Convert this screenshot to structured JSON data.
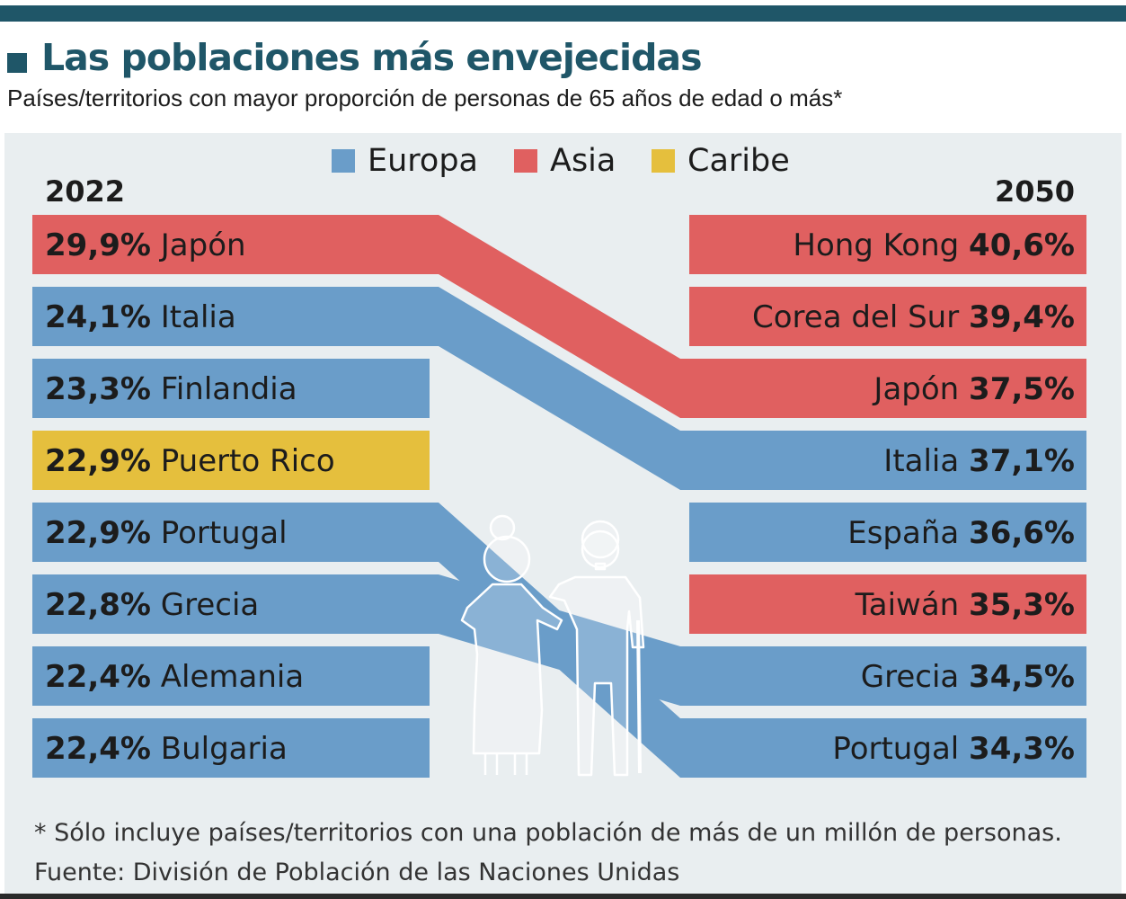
{
  "header": {
    "title": "Las poblaciones más envejecidas",
    "subtitle": "Países/territorios con mayor proporción de personas de 65 años de edad o más*"
  },
  "colors": {
    "europa": "#6a9dc9",
    "asia": "#e06060",
    "caribe": "#e5bf3d"
  },
  "chart_data": {
    "type": "slope-ranking",
    "legend": [
      {
        "key": "europa",
        "label": "Europa"
      },
      {
        "key": "asia",
        "label": "Asia"
      },
      {
        "key": "caribe",
        "label": "Caribe"
      }
    ],
    "left_year": "2022",
    "right_year": "2050",
    "left": [
      {
        "country": "Japón",
        "value": 29.9,
        "value_label": "29,9%",
        "region": "asia"
      },
      {
        "country": "Italia",
        "value": 24.1,
        "value_label": "24,1%",
        "region": "europa"
      },
      {
        "country": "Finlandia",
        "value": 23.3,
        "value_label": "23,3%",
        "region": "europa"
      },
      {
        "country": "Puerto Rico",
        "value": 22.9,
        "value_label": "22,9%",
        "region": "caribe"
      },
      {
        "country": "Portugal",
        "value": 22.9,
        "value_label": "22,9%",
        "region": "europa"
      },
      {
        "country": "Grecia",
        "value": 22.8,
        "value_label": "22,8%",
        "region": "europa"
      },
      {
        "country": "Alemania",
        "value": 22.4,
        "value_label": "22,4%",
        "region": "europa"
      },
      {
        "country": "Bulgaria",
        "value": 22.4,
        "value_label": "22,4%",
        "region": "europa"
      }
    ],
    "right": [
      {
        "country": "Hong Kong",
        "value": 40.6,
        "value_label": "40,6%",
        "region": "asia"
      },
      {
        "country": "Corea del Sur",
        "value": 39.4,
        "value_label": "39,4%",
        "region": "asia"
      },
      {
        "country": "Japón",
        "value": 37.5,
        "value_label": "37,5%",
        "region": "asia"
      },
      {
        "country": "Italia",
        "value": 37.1,
        "value_label": "37,1%",
        "region": "europa"
      },
      {
        "country": "España",
        "value": 36.6,
        "value_label": "36,6%",
        "region": "europa"
      },
      {
        "country": "Taiwán",
        "value": 35.3,
        "value_label": "35,3%",
        "region": "asia"
      },
      {
        "country": "Grecia",
        "value": 34.5,
        "value_label": "34,5%",
        "region": "europa"
      },
      {
        "country": "Portugal",
        "value": 34.3,
        "value_label": "34,3%",
        "region": "europa"
      }
    ]
  },
  "footer": {
    "note": "* Sólo incluye países/territorios con una población de más de un millón de personas.",
    "source": "Fuente: División de Población de las Naciones Unidas"
  }
}
